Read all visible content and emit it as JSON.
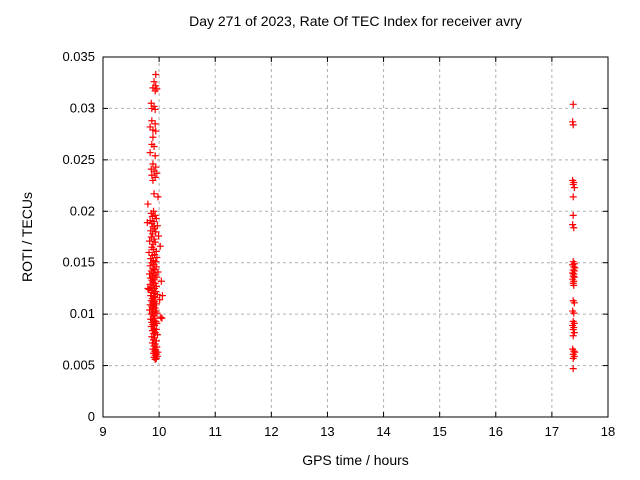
{
  "page": {
    "background": "#ffffff"
  },
  "chart_data": {
    "type": "scatter",
    "title": "Day 271 of 2023, Rate Of TEC Index for receiver avry",
    "xlabel": "GPS time / hours",
    "ylabel": "ROTI / TECUs",
    "xlim": [
      9,
      18
    ],
    "ylim": [
      0,
      0.035
    ],
    "xticks": [
      9,
      10,
      11,
      12,
      13,
      14,
      15,
      16,
      17,
      18
    ],
    "xtick_labels": [
      "9",
      "10",
      "11",
      "12",
      "13",
      "14",
      "15",
      "16",
      "17",
      "18"
    ],
    "yticks": [
      0,
      0.005,
      0.01,
      0.015,
      0.02,
      0.025,
      0.03,
      0.035
    ],
    "ytick_labels": [
      "0",
      "0.005",
      "0.01",
      "0.015",
      "0.02",
      "0.025",
      "0.03",
      "0.035"
    ],
    "grid": true,
    "legend": "none",
    "marker": {
      "shape": "plus",
      "color": "#ff0000",
      "size": 7
    },
    "colors": {
      "marker": "#ff0000",
      "grid": "#b0b0b0",
      "axis": "#000000",
      "text": "#000000"
    },
    "series": [
      {
        "name": "ROTI",
        "points": [
          [
            9.94,
            0.0333
          ],
          [
            9.91,
            0.0326
          ],
          [
            9.94,
            0.0322
          ],
          [
            9.89,
            0.032
          ],
          [
            9.96,
            0.0319
          ],
          [
            9.93,
            0.0317
          ],
          [
            9.86,
            0.0305
          ],
          [
            9.91,
            0.0302
          ],
          [
            9.87,
            0.03
          ],
          [
            9.93,
            0.0299
          ],
          [
            9.87,
            0.0288
          ],
          [
            9.93,
            0.0285
          ],
          [
            9.84,
            0.0282
          ],
          [
            9.89,
            0.0279
          ],
          [
            9.94,
            0.0278
          ],
          [
            9.89,
            0.0272
          ],
          [
            9.87,
            0.0265
          ],
          [
            9.91,
            0.0263
          ],
          [
            9.84,
            0.0257
          ],
          [
            9.93,
            0.0254
          ],
          [
            9.89,
            0.0246
          ],
          [
            9.94,
            0.0243
          ],
          [
            9.86,
            0.0241
          ],
          [
            9.91,
            0.0239
          ],
          [
            9.96,
            0.0237
          ],
          [
            9.87,
            0.0235
          ],
          [
            9.93,
            0.0233
          ],
          [
            9.89,
            0.023
          ],
          [
            9.91,
            0.0217
          ],
          [
            9.98,
            0.0214
          ],
          [
            9.8,
            0.0207
          ],
          [
            9.9,
            0.02
          ],
          [
            9.86,
            0.0198
          ],
          [
            9.93,
            0.0196
          ],
          [
            9.88,
            0.0195
          ],
          [
            9.95,
            0.0193
          ],
          [
            9.84,
            0.0191
          ],
          [
            9.91,
            0.019
          ],
          [
            9.79,
            0.0189
          ],
          [
            9.87,
            0.0188
          ],
          [
            9.97,
            0.0186
          ],
          [
            9.89,
            0.0185
          ],
          [
            9.92,
            0.0183
          ],
          [
            9.85,
            0.0181
          ],
          [
            9.94,
            0.018
          ],
          [
            9.88,
            0.0178
          ],
          [
            9.99,
            0.0176
          ],
          [
            9.86,
            0.0175
          ],
          [
            9.91,
            0.0173
          ],
          [
            9.83,
            0.0171
          ],
          [
            9.93,
            0.017
          ],
          [
            9.89,
            0.0168
          ],
          [
            10.02,
            0.0166
          ],
          [
            9.87,
            0.0165
          ],
          [
            9.9,
            0.0163
          ],
          [
            9.95,
            0.0161
          ],
          [
            9.82,
            0.016
          ],
          [
            9.92,
            0.0158
          ],
          [
            9.88,
            0.0157
          ],
          [
            9.96,
            0.0155
          ],
          [
            9.85,
            0.0154
          ],
          [
            9.9,
            0.0152
          ],
          [
            9.94,
            0.0151
          ],
          [
            9.87,
            0.015
          ],
          [
            9.91,
            0.0148
          ],
          [
            9.84,
            0.0147
          ],
          [
            9.95,
            0.0146
          ],
          [
            9.89,
            0.0144
          ],
          [
            9.92,
            0.0143
          ],
          [
            9.86,
            0.0142
          ],
          [
            9.98,
            0.0141
          ],
          [
            9.9,
            0.014
          ],
          [
            9.83,
            0.0139
          ],
          [
            9.93,
            0.0138
          ],
          [
            9.88,
            0.0137
          ],
          [
            9.96,
            0.0136
          ],
          [
            9.85,
            0.0135
          ],
          [
            9.91,
            0.0134
          ],
          [
            9.87,
            0.0133
          ],
          [
            10.04,
            0.0132
          ],
          [
            9.89,
            0.0131
          ],
          [
            9.93,
            0.013
          ],
          [
            9.84,
            0.0129
          ],
          [
            9.9,
            0.0128
          ],
          [
            9.95,
            0.0127
          ],
          [
            9.87,
            0.0126
          ],
          [
            9.92,
            0.0125
          ],
          [
            9.8,
            0.0125
          ],
          [
            9.82,
            0.0124
          ],
          [
            9.89,
            0.0123
          ],
          [
            9.94,
            0.0122
          ],
          [
            9.86,
            0.0121
          ],
          [
            9.91,
            0.012
          ],
          [
            9.97,
            0.0119
          ],
          [
            9.85,
            0.0118
          ],
          [
            10.06,
            0.0118
          ],
          [
            9.9,
            0.0117
          ],
          [
            9.93,
            0.0116
          ],
          [
            9.88,
            0.0115
          ],
          [
            10.01,
            0.0114
          ],
          [
            9.86,
            0.0113
          ],
          [
            9.92,
            0.0112
          ],
          [
            9.89,
            0.0111
          ],
          [
            9.95,
            0.011
          ],
          [
            9.84,
            0.0109
          ],
          [
            9.91,
            0.0108
          ],
          [
            9.87,
            0.0107
          ],
          [
            9.93,
            0.0106
          ],
          [
            9.9,
            0.0105
          ],
          [
            9.83,
            0.0104
          ],
          [
            9.94,
            0.0103
          ],
          [
            9.88,
            0.0102
          ],
          [
            9.96,
            0.0101
          ],
          [
            9.86,
            0.01
          ],
          [
            9.91,
            0.0099
          ],
          [
            9.89,
            0.0098
          ],
          [
            10.03,
            0.0097
          ],
          [
            9.92,
            0.0096
          ],
          [
            10.05,
            0.0096
          ],
          [
            9.85,
            0.0095
          ],
          [
            9.9,
            0.0094
          ],
          [
            9.94,
            0.0093
          ],
          [
            9.87,
            0.0092
          ],
          [
            9.96,
            0.0091
          ],
          [
            9.89,
            0.009
          ],
          [
            9.92,
            0.0089
          ],
          [
            9.86,
            0.0088
          ],
          [
            9.91,
            0.0086
          ],
          [
            9.95,
            0.0085
          ],
          [
            9.88,
            0.0084
          ],
          [
            9.93,
            0.0082
          ],
          [
            9.9,
            0.0081
          ],
          [
            9.97,
            0.008
          ],
          [
            9.87,
            0.0078
          ],
          [
            9.92,
            0.0077
          ],
          [
            9.9,
            0.0075
          ],
          [
            9.95,
            0.0074
          ],
          [
            9.88,
            0.0072
          ],
          [
            9.93,
            0.0071
          ],
          [
            9.91,
            0.0069
          ],
          [
            9.96,
            0.0068
          ],
          [
            9.89,
            0.0066
          ],
          [
            9.94,
            0.0065
          ],
          [
            9.92,
            0.0064
          ],
          [
            9.98,
            0.0063
          ],
          [
            9.9,
            0.0062
          ],
          [
            9.95,
            0.0061
          ],
          [
            9.93,
            0.006
          ],
          [
            9.97,
            0.0059
          ],
          [
            9.91,
            0.0058
          ],
          [
            9.95,
            0.0057
          ],
          [
            9.93,
            0.0056
          ],
          [
            17.38,
            0.0304
          ],
          [
            17.37,
            0.0287
          ],
          [
            17.38,
            0.0284
          ],
          [
            17.37,
            0.023
          ],
          [
            17.39,
            0.0228
          ],
          [
            17.38,
            0.0226
          ],
          [
            17.4,
            0.0223
          ],
          [
            17.38,
            0.0214
          ],
          [
            17.38,
            0.0196
          ],
          [
            17.37,
            0.0187
          ],
          [
            17.39,
            0.0184
          ],
          [
            17.38,
            0.0151
          ],
          [
            17.4,
            0.0149
          ],
          [
            17.37,
            0.0148
          ],
          [
            17.39,
            0.0146
          ],
          [
            17.41,
            0.0145
          ],
          [
            17.38,
            0.0143
          ],
          [
            17.4,
            0.0142
          ],
          [
            17.37,
            0.014
          ],
          [
            17.39,
            0.0139
          ],
          [
            17.38,
            0.0137
          ],
          [
            17.4,
            0.0136
          ],
          [
            17.37,
            0.0134
          ],
          [
            17.39,
            0.0132
          ],
          [
            17.38,
            0.013
          ],
          [
            17.39,
            0.0128
          ],
          [
            17.38,
            0.0113
          ],
          [
            17.4,
            0.0111
          ],
          [
            17.37,
            0.0103
          ],
          [
            17.39,
            0.0101
          ],
          [
            17.38,
            0.0093
          ],
          [
            17.4,
            0.0091
          ],
          [
            17.37,
            0.0089
          ],
          [
            17.39,
            0.0087
          ],
          [
            17.38,
            0.0085
          ],
          [
            17.4,
            0.0082
          ],
          [
            17.38,
            0.0079
          ],
          [
            17.37,
            0.0066
          ],
          [
            17.39,
            0.0064
          ],
          [
            17.41,
            0.0063
          ],
          [
            17.38,
            0.0061
          ],
          [
            17.4,
            0.0059
          ],
          [
            17.38,
            0.0057
          ],
          [
            17.38,
            0.0047
          ]
        ]
      }
    ]
  }
}
